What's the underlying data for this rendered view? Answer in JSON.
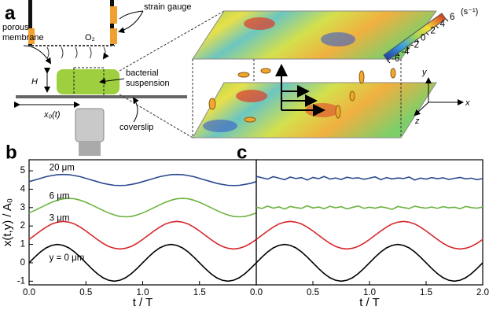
{
  "panel_a": {
    "label": "a",
    "strain_gauge": "strain gauge",
    "porous_membrane": [
      "porous",
      "membrane"
    ],
    "oxygen": "O₂",
    "height": "H",
    "bacterial_suspension": [
      "bacterial",
      "suspension"
    ],
    "displacement": "x₀(t)",
    "coverslip": "coverslip",
    "colorbar": {
      "unit": "(s⁻¹)",
      "ticks": [
        6,
        4,
        2,
        0,
        -2,
        -4,
        -6
      ]
    },
    "axes": {
      "x": "x",
      "y": "y",
      "z": "z"
    }
  },
  "chart_data": [
    {
      "type": "line",
      "panel": "b",
      "ylabel": "x(t,y) / A₀",
      "xlabel": "t / T",
      "x": [
        0,
        0.05,
        0.1,
        0.15,
        0.2,
        0.25,
        0.3,
        0.35,
        0.4,
        0.45,
        0.5,
        0.55,
        0.6,
        0.65,
        0.7,
        0.75,
        0.8,
        0.85,
        0.9,
        0.95,
        1,
        1.05,
        1.1,
        1.15,
        1.2,
        1.25,
        1.3,
        1.35,
        1.4,
        1.45,
        1.5,
        1.55,
        1.6,
        1.65,
        1.7,
        1.75,
        1.8,
        1.85,
        1.9,
        1.95,
        2
      ],
      "xlim": [
        0,
        2
      ],
      "xticks": [
        {
          "value": 0,
          "label": "0.0"
        },
        0.5,
        {
          "value": 1,
          "label": "1.0"
        },
        1.5
      ],
      "ylim": [
        -1.2,
        5.6
      ],
      "yticks": [
        -1,
        0,
        1,
        2,
        3,
        4,
        5
      ],
      "series": [
        {
          "name": "20 μm",
          "color": "#2b4a8e",
          "values": [
            4.41,
            4.5,
            4.59,
            4.68,
            4.74,
            4.79,
            4.8,
            4.79,
            4.74,
            4.68,
            4.59,
            4.5,
            4.41,
            4.32,
            4.26,
            4.21,
            4.2,
            4.21,
            4.26,
            4.32,
            4.41,
            4.5,
            4.59,
            4.68,
            4.74,
            4.79,
            4.8,
            4.79,
            4.74,
            4.68,
            4.59,
            4.5,
            4.41,
            4.32,
            4.26,
            4.21,
            4.2,
            4.21,
            4.26,
            4.32,
            4.41
          ]
        },
        {
          "name": "6 μm",
          "color": "#6cb33f",
          "values": [
            2.71,
            2.85,
            3,
            3.15,
            3.29,
            3.4,
            3.48,
            3.5,
            3.48,
            3.4,
            3.29,
            3.15,
            3,
            2.85,
            2.71,
            2.6,
            2.52,
            2.5,
            2.52,
            2.6,
            2.71,
            2.85,
            3,
            3.15,
            3.29,
            3.4,
            3.48,
            3.5,
            3.48,
            3.4,
            3.29,
            3.15,
            3,
            2.85,
            2.71,
            2.6,
            2.52,
            2.5,
            2.52,
            2.6,
            2.71
          ]
        },
        {
          "name": "3 μm",
          "color": "#d7262b",
          "values": [
            1.27,
            1.5,
            1.73,
            1.94,
            2.11,
            2.21,
            2.25,
            2.21,
            2.11,
            1.94,
            1.73,
            1.5,
            1.27,
            1.06,
            0.89,
            0.79,
            0.75,
            0.79,
            0.89,
            1.06,
            1.27,
            1.5,
            1.73,
            1.94,
            2.11,
            2.21,
            2.25,
            2.21,
            2.11,
            1.94,
            1.73,
            1.5,
            1.27,
            1.06,
            0.89,
            0.79,
            0.75,
            0.79,
            0.89,
            1.06,
            1.27
          ]
        },
        {
          "name": "y = 0 μm",
          "color": "#000000",
          "values": [
            0,
            0.31,
            0.59,
            0.81,
            0.95,
            1,
            0.95,
            0.81,
            0.59,
            0.31,
            0,
            -0.31,
            -0.59,
            -0.81,
            -0.95,
            -1,
            -0.95,
            -0.81,
            -0.59,
            -0.31,
            0,
            0.31,
            0.59,
            0.81,
            0.95,
            1,
            0.95,
            0.81,
            0.59,
            0.31,
            0,
            -0.31,
            -0.59,
            -0.81,
            -0.95,
            -1,
            -0.95,
            -0.81,
            -0.59,
            -0.31,
            0
          ]
        }
      ]
    },
    {
      "type": "line",
      "panel": "c",
      "xlabel": "t / T",
      "x": [
        0,
        0.05,
        0.1,
        0.15,
        0.2,
        0.25,
        0.3,
        0.35,
        0.4,
        0.45,
        0.5,
        0.55,
        0.6,
        0.65,
        0.7,
        0.75,
        0.8,
        0.85,
        0.9,
        0.95,
        1,
        1.05,
        1.1,
        1.15,
        1.2,
        1.25,
        1.3,
        1.35,
        1.4,
        1.45,
        1.5,
        1.55,
        1.6,
        1.65,
        1.7,
        1.75,
        1.8,
        1.85,
        1.9,
        1.95,
        2
      ],
      "xlim": [
        0,
        2
      ],
      "xticks": [
        {
          "value": 0,
          "label": "0.0"
        },
        0.5,
        {
          "value": 1,
          "label": "1.0"
        },
        1.5,
        {
          "value": 2,
          "label": "2.0"
        }
      ],
      "ylim": [
        -1.2,
        5.6
      ],
      "series": [
        {
          "color": "#2b4a8e",
          "values": [
            4.7,
            4.62,
            4.55,
            4.68,
            4.6,
            4.52,
            4.66,
            4.58,
            4.63,
            4.5,
            4.64,
            4.57,
            4.69,
            4.55,
            4.61,
            4.53,
            4.65,
            4.59,
            4.62,
            4.54,
            4.6,
            4.67,
            4.52,
            4.63,
            4.56,
            4.61,
            4.58,
            4.66,
            4.5,
            4.6,
            4.55,
            4.63,
            4.57,
            4.62,
            4.53,
            4.59,
            4.64,
            4.56,
            4.6,
            4.52,
            4.58
          ]
        },
        {
          "color": "#6cb33f",
          "values": [
            3.02,
            2.95,
            3.08,
            2.97,
            3.04,
            2.92,
            3.06,
            3.0,
            2.96,
            3.1,
            2.98,
            3.03,
            2.94,
            3.07,
            2.99,
            3.05,
            2.93,
            3.01,
            3.09,
            2.96,
            3.02,
            2.97,
            3.04,
            2.99,
            2.9,
            3.06,
            3.0,
            2.95,
            3.08,
            3.01,
            2.97,
            3.03,
            2.96,
            3.05,
            2.99,
            3.02,
            2.94,
            3.06,
            3.0,
            2.97,
            3.03
          ]
        },
        {
          "color": "#d7262b",
          "values": [
            1.27,
            1.5,
            1.73,
            1.94,
            2.11,
            2.21,
            2.25,
            2.21,
            2.11,
            1.94,
            1.73,
            1.5,
            1.27,
            1.06,
            0.89,
            0.79,
            0.75,
            0.79,
            0.89,
            1.06,
            1.27,
            1.5,
            1.73,
            1.94,
            2.11,
            2.21,
            2.25,
            2.21,
            2.11,
            1.94,
            1.73,
            1.5,
            1.27,
            1.06,
            0.89,
            0.79,
            0.75,
            0.79,
            0.89,
            1.06,
            1.27
          ]
        },
        {
          "color": "#000000",
          "values": [
            0,
            0.31,
            0.59,
            0.81,
            0.95,
            1,
            0.95,
            0.81,
            0.59,
            0.31,
            0,
            -0.31,
            -0.59,
            -0.81,
            -0.95,
            -1,
            -0.95,
            -0.81,
            -0.59,
            -0.31,
            0,
            0.31,
            0.59,
            0.81,
            0.95,
            1,
            0.95,
            0.81,
            0.59,
            0.31,
            0,
            -0.31,
            -0.59,
            -0.81,
            -0.95,
            -1,
            -0.95,
            -0.81,
            -0.59,
            -0.31,
            0
          ]
        }
      ]
    }
  ]
}
